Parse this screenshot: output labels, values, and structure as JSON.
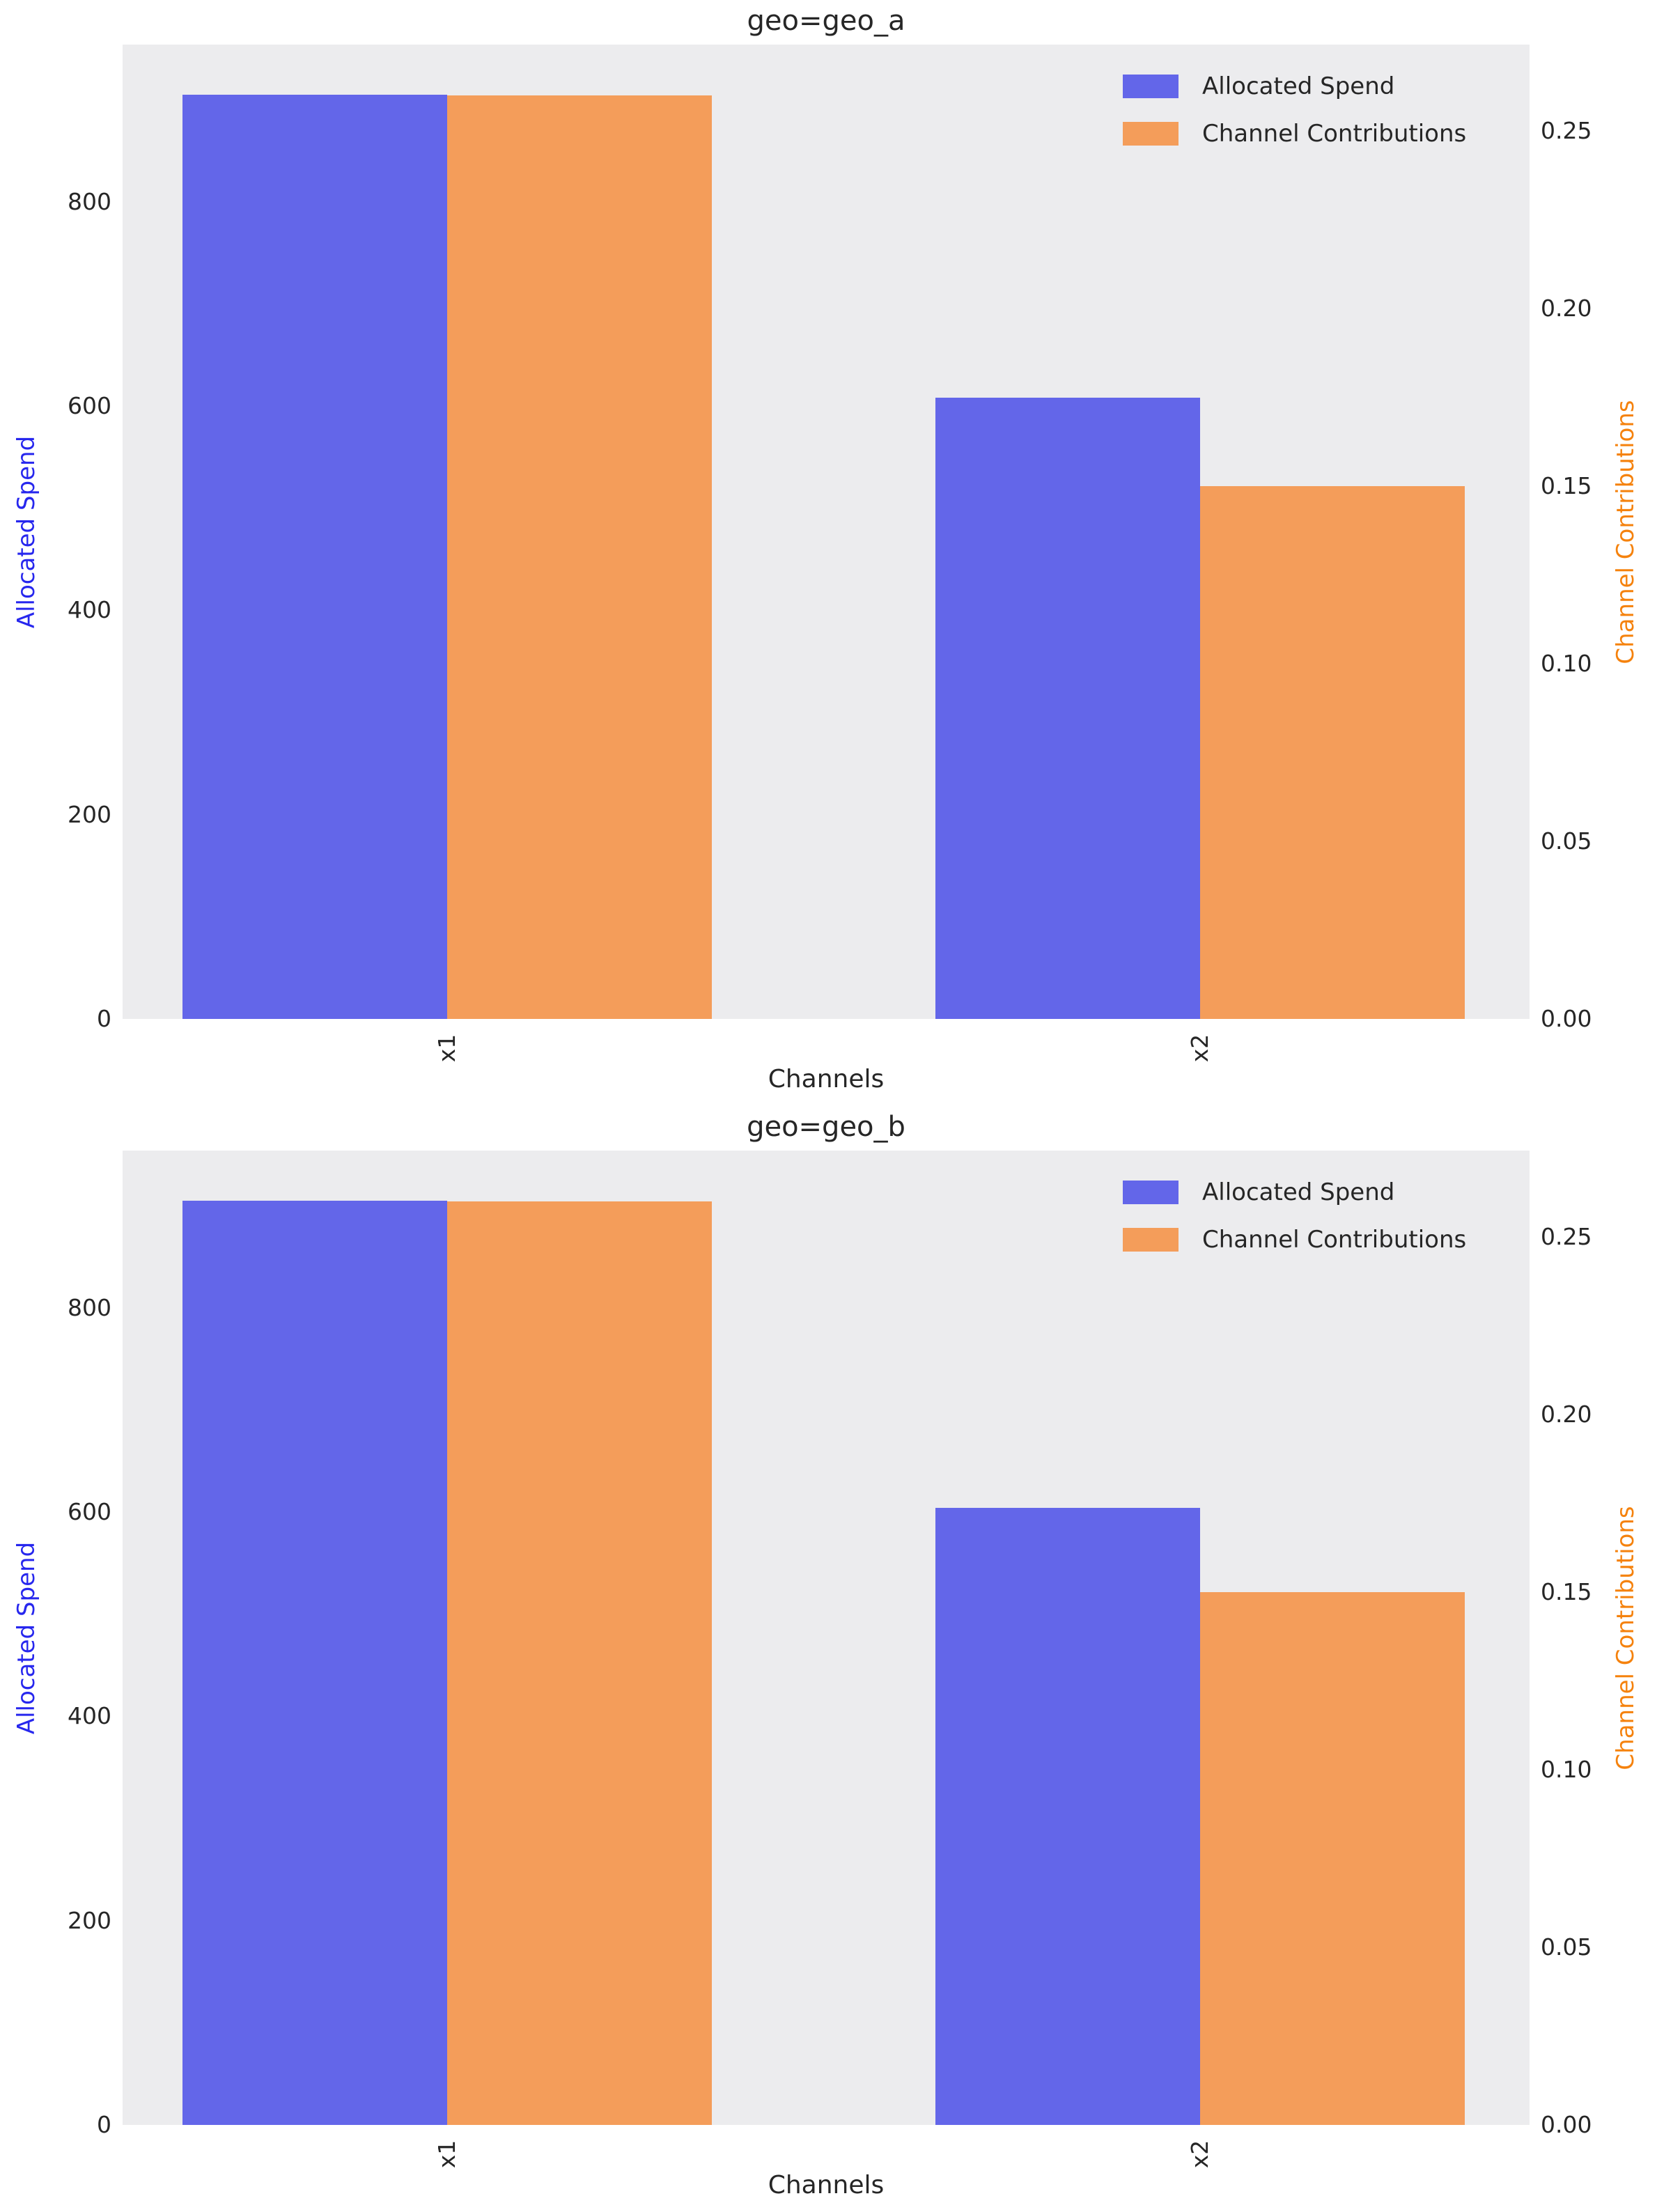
{
  "styles": {
    "figure_bg": "#ffffff",
    "plot_bg": "#ececee",
    "spend_color": "#6366e9",
    "contrib_color": "#f49d5a",
    "left_axis_label_color": "#2727ee",
    "right_axis_label_color": "#f5820d",
    "text_color": "#262626"
  },
  "chart_data": [
    {
      "type": "bar",
      "title": "geo=geo_a",
      "xlabel": "Channels",
      "ylabel_left": "Allocated Spend",
      "ylabel_right": "Channel Contributions",
      "categories": [
        "x1",
        "x2"
      ],
      "series": [
        {
          "name": "Allocated Spend",
          "axis": "left",
          "values": [
            905,
            608
          ]
        },
        {
          "name": "Channel Contributions",
          "axis": "right",
          "values": [
            0.26,
            0.15
          ]
        }
      ],
      "left_ticks": [
        0,
        200,
        400,
        600,
        800
      ],
      "right_ticks": [
        "0.00",
        "0.05",
        "0.10",
        "0.15",
        "0.20",
        "0.25"
      ],
      "ylim_left": [
        0,
        954
      ],
      "ylim_right": [
        0,
        0.2743
      ],
      "grid": false,
      "legend_position": "upper right"
    },
    {
      "type": "bar",
      "title": "geo=geo_b",
      "xlabel": "Channels",
      "ylabel_left": "Allocated Spend",
      "ylabel_right": "Channel Contributions",
      "categories": [
        "x1",
        "x2"
      ],
      "series": [
        {
          "name": "Allocated Spend",
          "axis": "left",
          "values": [
            905,
            604
          ]
        },
        {
          "name": "Channel Contributions",
          "axis": "right",
          "values": [
            0.26,
            0.15
          ]
        }
      ],
      "left_ticks": [
        0,
        200,
        400,
        600,
        800
      ],
      "right_ticks": [
        "0.00",
        "0.05",
        "0.10",
        "0.15",
        "0.20",
        "0.25"
      ],
      "ylim_left": [
        0,
        954
      ],
      "ylim_right": [
        0,
        0.2743
      ],
      "grid": false,
      "legend_position": "upper right"
    }
  ]
}
